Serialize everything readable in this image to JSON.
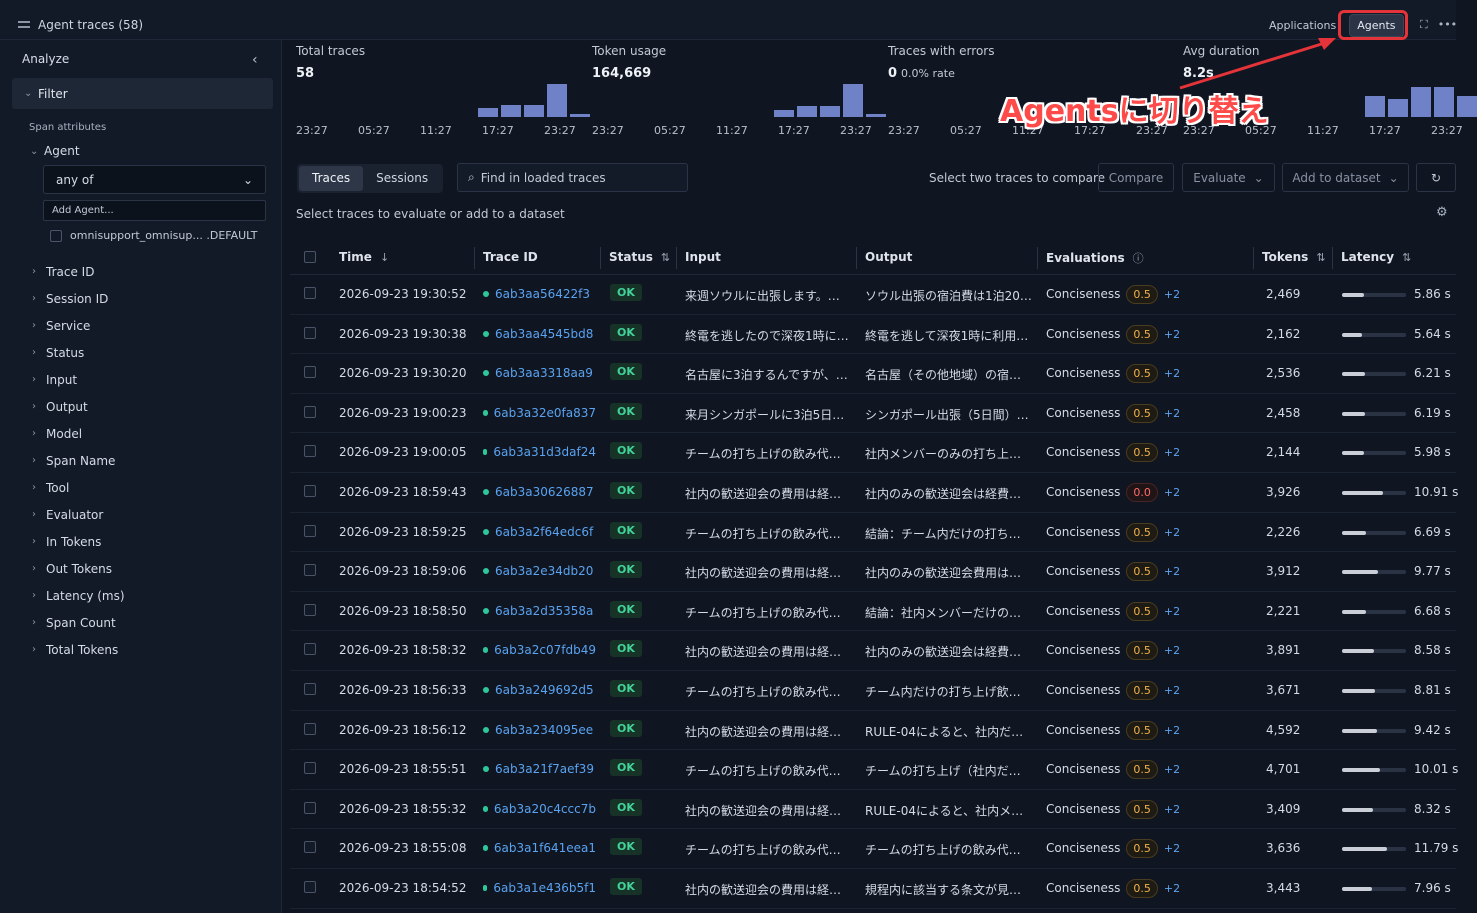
{
  "header": {
    "title": "Agent traces (58)",
    "seg": [
      "Applications",
      "Agents"
    ],
    "active_seg": "Agents",
    "icons": [
      "expand-icon",
      "more-icon"
    ]
  },
  "sidebar": {
    "analyze": "Analyze",
    "filter": "Filter",
    "span_attributes": "Span attributes",
    "agent_label": "Agent",
    "any_of": "any of",
    "add_agent_placeholder": "Add Agent...",
    "agent_option": "omnisupport_omnisup... .DEFAULT",
    "items": [
      "Trace ID",
      "Session ID",
      "Service",
      "Status",
      "Input",
      "Output",
      "Model",
      "Span Name",
      "Tool",
      "Evaluator",
      "In Tokens",
      "Out Tokens",
      "Latency (ms)",
      "Span Count",
      "Total Tokens"
    ]
  },
  "metrics": [
    {
      "label": "Total traces",
      "value": "58",
      "rate": "",
      "ticks": [
        "23:27",
        "05:27",
        "11:27",
        "17:27",
        "23:27"
      ],
      "bars": [
        0,
        0,
        0,
        0,
        0,
        0,
        0,
        0,
        0,
        0,
        0,
        0,
        0,
        0,
        0,
        0,
        0,
        0,
        0.15,
        0.2,
        0.2,
        0.55,
        0.05
      ]
    },
    {
      "label": "Token usage",
      "value": "164,669",
      "rate": "",
      "ticks": [
        "23:27",
        "05:27",
        "11:27",
        "17:27",
        "23:27"
      ],
      "bars": [
        0,
        0,
        0,
        0,
        0,
        0,
        0,
        0,
        0,
        0,
        0,
        0,
        0,
        0,
        0,
        0,
        0,
        0,
        0.12,
        0.18,
        0.18,
        0.55,
        0.05
      ]
    },
    {
      "label": "Traces with errors",
      "value": "0",
      "rate": "0.0% rate",
      "ticks": [
        "23:27",
        "05:27",
        "11:27",
        "17:27",
        "23:27"
      ],
      "bars": []
    },
    {
      "label": "Avg duration",
      "value": "8.2s",
      "rate": "",
      "ticks": [
        "23:27",
        "05:27",
        "11:27",
        "17:27",
        "23:27"
      ],
      "bars": [
        0,
        0,
        0,
        0,
        0,
        0,
        0,
        0,
        0,
        0,
        0,
        0,
        0,
        0,
        0,
        0,
        0,
        0,
        0.35,
        0.3,
        0.5,
        0.5,
        0.35
      ]
    }
  ],
  "annotation": "Agentsに切り替え",
  "toolbar": {
    "tabs": [
      "Traces",
      "Sessions"
    ],
    "search_placeholder": "Find in loaded traces",
    "compare_hint": "Select two traces to compare",
    "compare": "Compare",
    "evaluate": "Evaluate",
    "add_to_dataset": "Add to dataset",
    "sub_hint": "Select traces to evaluate or add to a dataset"
  },
  "columns": {
    "time": "Time",
    "trace_id": "Trace ID",
    "status": "Status",
    "input": "Input",
    "output": "Output",
    "evaluations": "Evaluations",
    "tokens": "Tokens",
    "latency": "Latency"
  },
  "rows": [
    {
      "time": "2026-09-23 19:30:52",
      "trace_id": "6ab3aa56422f3",
      "status": "OK",
      "input": "来週ソウルに出張します。…",
      "output": "ソウル出張の宿泊費は1泊20…",
      "eval": "Conciseness",
      "score": "0.5",
      "more": "+2",
      "tokens": "2,469",
      "latency": "5.86 s",
      "lat_frac": 0.34
    },
    {
      "time": "2026-09-23 19:30:38",
      "trace_id": "6ab3aa4545bd8",
      "status": "OK",
      "input": "終電を逃したので深夜1時に…",
      "output": "終電を逃して深夜1時に利用…",
      "eval": "Conciseness",
      "score": "0.5",
      "more": "+2",
      "tokens": "2,162",
      "latency": "5.64 s",
      "lat_frac": 0.32
    },
    {
      "time": "2026-09-23 19:30:20",
      "trace_id": "6ab3aa3318aa9",
      "status": "OK",
      "input": "名古屋に3泊するんですが、…",
      "output": "名古屋（その他地域）の宿…",
      "eval": "Conciseness",
      "score": "0.5",
      "more": "+2",
      "tokens": "2,536",
      "latency": "6.21 s",
      "lat_frac": 0.36
    },
    {
      "time": "2026-09-23 19:00:23",
      "trace_id": "6ab3a32e0fa837",
      "status": "OK",
      "input": "来月シンガポールに3泊5日…",
      "output": "シンガポール出張（5日間）…",
      "eval": "Conciseness",
      "score": "0.5",
      "more": "+2",
      "tokens": "2,458",
      "latency": "6.19 s",
      "lat_frac": 0.36
    },
    {
      "time": "2026-09-23 19:00:05",
      "trace_id": "6ab3a31d3daf24",
      "status": "OK",
      "input": "チームの打ち上げの飲み代…",
      "output": "社内メンバーのみの打ち上…",
      "eval": "Conciseness",
      "score": "0.5",
      "more": "+2",
      "tokens": "2,144",
      "latency": "5.98 s",
      "lat_frac": 0.34
    },
    {
      "time": "2026-09-23 18:59:43",
      "trace_id": "6ab3a30626887",
      "status": "OK",
      "input": "社内の歓送迎会の費用は経…",
      "output": "社内のみの歓送迎会は経費…",
      "eval": "Conciseness",
      "score": "0.0",
      "more": "+2",
      "tokens": "3,926",
      "latency": "10.91 s",
      "lat_frac": 0.64
    },
    {
      "time": "2026-09-23 18:59:25",
      "trace_id": "6ab3a2f64edc6f",
      "status": "OK",
      "input": "チームの打ち上げの飲み代…",
      "output": "結論：チーム内だけの打ち…",
      "eval": "Conciseness",
      "score": "0.5",
      "more": "+2",
      "tokens": "2,226",
      "latency": "6.69 s",
      "lat_frac": 0.38
    },
    {
      "time": "2026-09-23 18:59:06",
      "trace_id": "6ab3a2e34db20",
      "status": "OK",
      "input": "社内の歓送迎会の費用は経…",
      "output": "社内のみの歓送迎会費用は…",
      "eval": "Conciseness",
      "score": "0.5",
      "more": "+2",
      "tokens": "3,912",
      "latency": "9.77 s",
      "lat_frac": 0.57
    },
    {
      "time": "2026-09-23 18:58:50",
      "trace_id": "6ab3a2d35358a",
      "status": "OK",
      "input": "チームの打ち上げの飲み代…",
      "output": "結論：社内メンバーだけの…",
      "eval": "Conciseness",
      "score": "0.5",
      "more": "+2",
      "tokens": "2,221",
      "latency": "6.68 s",
      "lat_frac": 0.38
    },
    {
      "time": "2026-09-23 18:58:32",
      "trace_id": "6ab3a2c07fdb49",
      "status": "OK",
      "input": "社内の歓送迎会の費用は経…",
      "output": "社内のみの歓送迎会は経費…",
      "eval": "Conciseness",
      "score": "0.5",
      "more": "+2",
      "tokens": "3,891",
      "latency": "8.58 s",
      "lat_frac": 0.5
    },
    {
      "time": "2026-09-23 18:56:33",
      "trace_id": "6ab3a249692d5",
      "status": "OK",
      "input": "チームの打ち上げの飲み代…",
      "output": "チーム内だけの打ち上げ飲…",
      "eval": "Conciseness",
      "score": "0.5",
      "more": "+2",
      "tokens": "3,671",
      "latency": "8.81 s",
      "lat_frac": 0.52
    },
    {
      "time": "2026-09-23 18:56:12",
      "trace_id": "6ab3a234095ee",
      "status": "OK",
      "input": "社内の歓送迎会の費用は経…",
      "output": "RULE-04によると、社内だ…",
      "eval": "Conciseness",
      "score": "0.5",
      "more": "+2",
      "tokens": "4,592",
      "latency": "9.42 s",
      "lat_frac": 0.55
    },
    {
      "time": "2026-09-23 18:55:51",
      "trace_id": "6ab3a21f7aef39",
      "status": "OK",
      "input": "チームの打ち上げの飲み代…",
      "output": "チームの打ち上げ（社内だ…",
      "eval": "Conciseness",
      "score": "0.5",
      "more": "+2",
      "tokens": "4,701",
      "latency": "10.01 s",
      "lat_frac": 0.59
    },
    {
      "time": "2026-09-23 18:55:32",
      "trace_id": "6ab3a20c4ccc7b",
      "status": "OK",
      "input": "社内の歓送迎会の費用は経…",
      "output": "RULE-04によると、社内メ…",
      "eval": "Conciseness",
      "score": "0.5",
      "more": "+2",
      "tokens": "3,409",
      "latency": "8.32 s",
      "lat_frac": 0.49
    },
    {
      "time": "2026-09-23 18:55:08",
      "trace_id": "6ab3a1f641eea1",
      "status": "OK",
      "input": "チームの打ち上げの飲み代…",
      "output": "チームの打ち上げの飲み代…",
      "eval": "Conciseness",
      "score": "0.5",
      "more": "+2",
      "tokens": "3,636",
      "latency": "11.79 s",
      "lat_frac": 0.7
    },
    {
      "time": "2026-09-23 18:54:52",
      "trace_id": "6ab3a1e436b5f1",
      "status": "OK",
      "input": "社内の歓送迎会の費用は経…",
      "output": "規程内に該当する条文が見…",
      "eval": "Conciseness",
      "score": "0.5",
      "more": "+2",
      "tokens": "3,443",
      "latency": "7.96 s",
      "lat_frac": 0.47
    }
  ]
}
